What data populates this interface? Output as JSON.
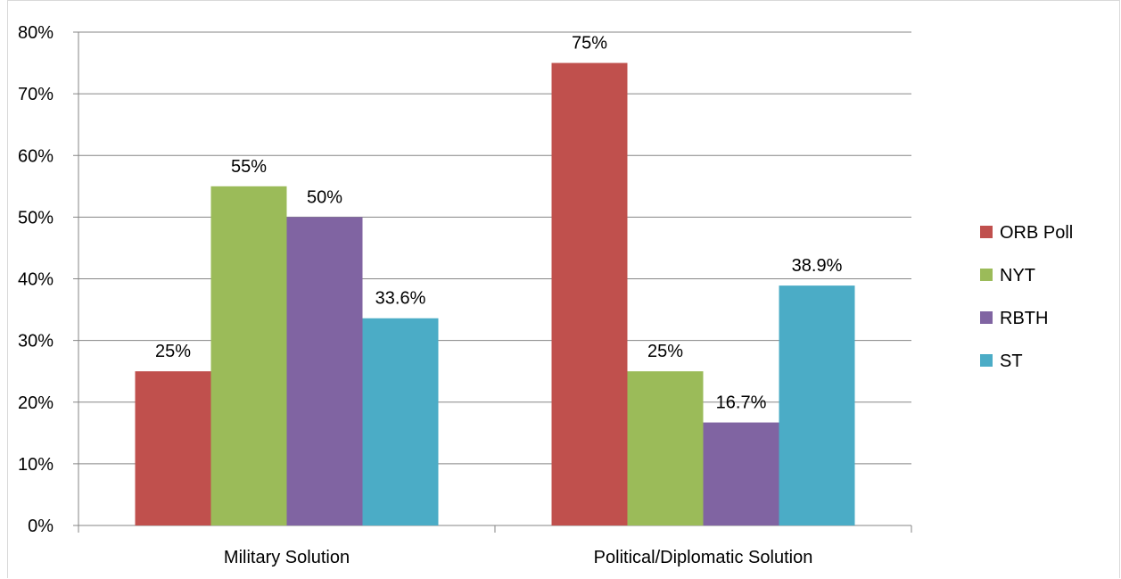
{
  "chart_data": {
    "type": "bar",
    "categories": [
      "Military Solution",
      "Political/Diplomatic Solution"
    ],
    "series": [
      {
        "name": "ORB Poll",
        "values": [
          25,
          75
        ],
        "labels": [
          "25%",
          "75%"
        ],
        "color": "#c0504d"
      },
      {
        "name": "NYT",
        "values": [
          55,
          25
        ],
        "labels": [
          "55%",
          "25%"
        ],
        "color": "#9bbb59"
      },
      {
        "name": "RBTH",
        "values": [
          50,
          16.7
        ],
        "labels": [
          "50%",
          "16.7%"
        ],
        "color": "#8064a2"
      },
      {
        "name": "ST",
        "values": [
          33.6,
          38.9
        ],
        "labels": [
          "33.6%",
          "38.9%"
        ],
        "color": "#4bacc6"
      }
    ],
    "ylim": [
      0,
      80
    ],
    "yticks": [
      0,
      10,
      20,
      30,
      40,
      50,
      60,
      70,
      80
    ],
    "ytick_labels": [
      "0%",
      "10%",
      "20%",
      "30%",
      "40%",
      "50%",
      "60%",
      "70%",
      "80%"
    ],
    "grid": true,
    "legend_position": "right"
  }
}
